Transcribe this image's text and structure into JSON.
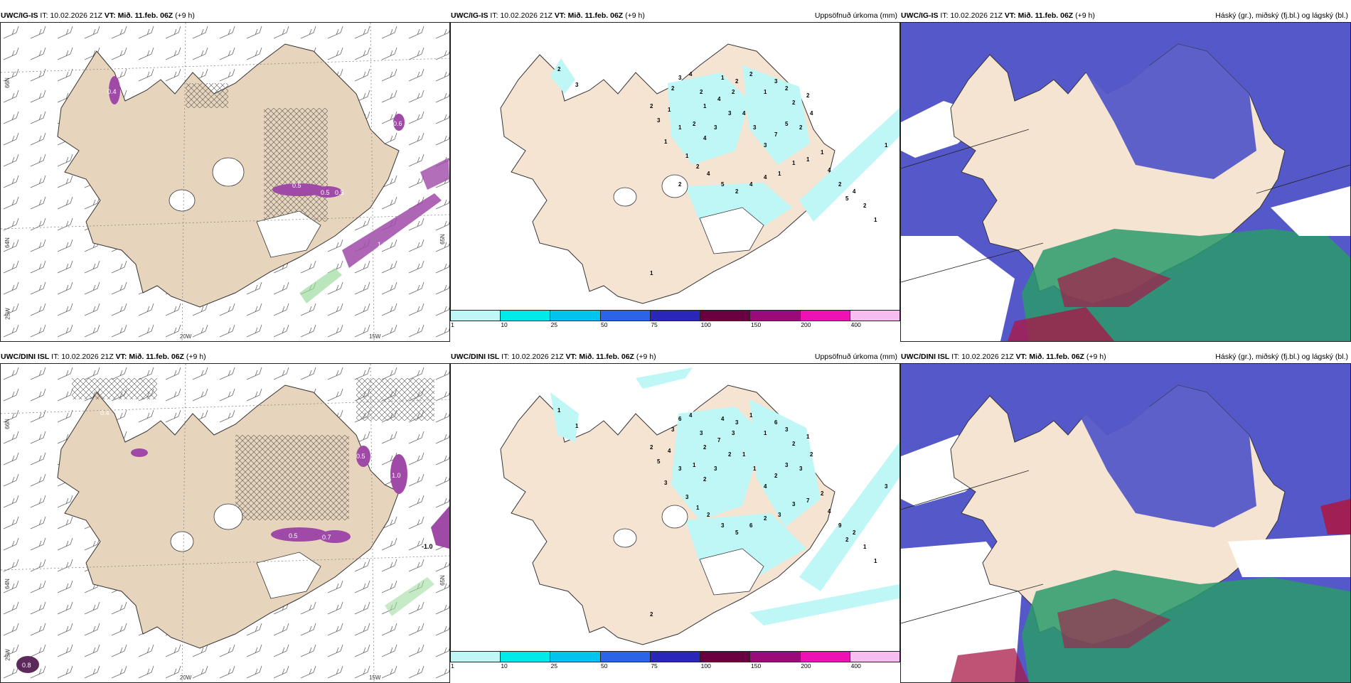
{
  "rows": [
    {
      "wind_panel": {
        "model": "UWC/IG-IS",
        "it_prefix": "IT:",
        "it_value": "10.02.2026 21Z",
        "vt_label": "VT: Mið. 11.feb. 06Z",
        "lead": "(+9 h)",
        "axis": {
          "lat_top": "66N",
          "lat_bottom": "64N",
          "lon_left": "25W",
          "lon_mid": "20W",
          "lon_right": "15W",
          "lat_right": "65N"
        },
        "values": [
          "0.5",
          "0.5",
          "0.4",
          "1.0",
          "0.6",
          "0.5"
        ]
      },
      "precip_panel": {
        "model": "UWC/IG-IS",
        "it_prefix": "IT:",
        "it_value": "10.02.2026 21Z",
        "vt_label": "VT: Mið. 11.feb. 06Z",
        "lead": "(+9 h)",
        "right_title": "Uppsöfnuð úrkoma (mm)",
        "numbers": [
          "2",
          "3",
          "2",
          "3",
          "4",
          "2",
          "1",
          "4",
          "1",
          "2",
          "2",
          "2",
          "1",
          "3",
          "2",
          "2",
          "2",
          "4",
          "2",
          "5",
          "7",
          "3",
          "3",
          "4",
          "3",
          "3",
          "4",
          "2",
          "1",
          "1",
          "3",
          "1",
          "2",
          "1",
          "2",
          "4",
          "5",
          "2",
          "4",
          "4",
          "1",
          "1",
          "1",
          "1",
          "4",
          "2",
          "5",
          "4",
          "2",
          "1",
          "1",
          "1",
          "2"
        ]
      },
      "cloud_panel": {
        "model": "UWC/IG-IS",
        "it_prefix": "IT:",
        "it_value": "10.02.2026 21Z",
        "vt_label": "VT: Mið. 11.feb. 06Z",
        "lead": "(+9 h)",
        "right_title": "Háský (gr.), miðský (fj.bl.) og lágský (bl.)"
      }
    },
    {
      "wind_panel": {
        "model": "UWC/DINI ISL",
        "it_prefix": "IT:",
        "it_value": "10.02.2026 21Z",
        "vt_label": "VT: Mið. 11.feb. 06Z",
        "lead": "(+9 h)",
        "axis": {
          "lat_top": "66N",
          "lat_bottom": "64N",
          "lon_left": "25W",
          "lon_mid": "20W",
          "lon_right": "15W",
          "lat_right": "65N"
        },
        "values": [
          "0.4",
          "0.5",
          "0.7",
          "1.0",
          "0.5",
          "-1.0",
          "0.8"
        ]
      },
      "precip_panel": {
        "model": "UWC/DINI ISL",
        "it_prefix": "IT:",
        "it_value": "10.02.2026 21Z",
        "vt_label": "VT: Mið. 11.feb. 06Z",
        "lead": "(+9 h)",
        "right_title": "Uppsöfnuð úrkoma (mm)",
        "numbers": [
          "1",
          "1",
          "3",
          "6",
          "4",
          "3",
          "2",
          "7",
          "4",
          "3",
          "3",
          "1",
          "1",
          "6",
          "3",
          "2",
          "1",
          "2",
          "3",
          "3",
          "2",
          "4",
          "1",
          "1",
          "2",
          "3",
          "2",
          "1",
          "3",
          "3",
          "5",
          "4",
          "2",
          "3",
          "1",
          "2",
          "3",
          "5",
          "6",
          "2",
          "3",
          "3",
          "7",
          "2",
          "4",
          "9",
          "2",
          "2",
          "1",
          "1",
          "3",
          "2"
        ]
      },
      "cloud_panel": {
        "model": "UWC/DINI ISL",
        "it_prefix": "IT:",
        "it_value": "10.02.2026 21Z",
        "vt_label": "VT: Mið. 11.feb. 06Z",
        "lead": "(+9 h)",
        "right_title": "Háský (gr.), miðský (fj.bl.) og lágský (bl.)"
      }
    }
  ],
  "colorbar": {
    "labels": [
      "1",
      "10",
      "25",
      "50",
      "75",
      "100",
      "150",
      "200",
      "400"
    ],
    "colors": [
      "#bff7f7",
      "#00eaea",
      "#00c4ee",
      "#2b64e6",
      "#2a27b8",
      "#6a0040",
      "#9b0a7a",
      "#ee11b3",
      "#f7bdf0"
    ]
  },
  "colors": {
    "land": "#f6e4d3",
    "wind_land": "#e7d4bd",
    "precip_light": "#bff6f6",
    "purple": "#a04aa8",
    "cloud_high": "#5558c8",
    "cloud_mid_green": "#2a9a6a",
    "cloud_low": "#a81a48"
  }
}
